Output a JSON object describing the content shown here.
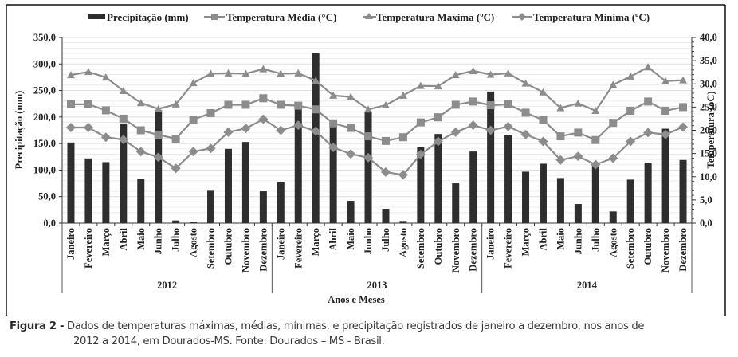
{
  "chart_data": {
    "type": "bar+line",
    "title": "",
    "xlabel": "Anos e Meses",
    "ylabel_left": "Precipitação (mm)",
    "ylabel_right": "Temperatura (oC)",
    "ylim_left": [
      0,
      350
    ],
    "ylim_right": [
      0,
      40
    ],
    "yticks_left": [
      "0,0",
      "50,0",
      "100,0",
      "150,0",
      "200,0",
      "250,0",
      "300,0",
      "350,0"
    ],
    "yticks_right": [
      "0,0",
      "5,0",
      "10,0",
      "15,0",
      "20,0",
      "25,0",
      "30,0",
      "35,0",
      "40,0"
    ],
    "grid": "horizontal",
    "legend_position": "top",
    "years": [
      "2012",
      "2013",
      "2014"
    ],
    "months": [
      "Janeiro",
      "Fevereiro",
      "Março",
      "Abril",
      "Maio",
      "Junho",
      "Julho",
      "Agosto",
      "Setembro",
      "Outubro",
      "Novembro",
      "Dezembro"
    ],
    "series": [
      {
        "name": "Precipitação (mm)",
        "kind": "bar",
        "axis": "left",
        "color": "#2e2e2e",
        "values": [
          152,
          122,
          115,
          188,
          84,
          213,
          5,
          2,
          61,
          140,
          153,
          60,
          77,
          218,
          320,
          183,
          42,
          210,
          27,
          4,
          144,
          168,
          75,
          135,
          248,
          166,
          97,
          112,
          85,
          36,
          108,
          22,
          82,
          114,
          178,
          119
        ]
      },
      {
        "name": "Temperatura Média (°C)",
        "kind": "line",
        "marker": "square",
        "axis": "right",
        "color": "#8c8c8c",
        "values": [
          25.6,
          25.6,
          24.3,
          22.5,
          20.0,
          19.0,
          18.2,
          22.3,
          23.7,
          25.5,
          25.5,
          26.9,
          25.5,
          25.3,
          24.5,
          21.5,
          20.5,
          18.7,
          17.7,
          18.5,
          21.7,
          22.8,
          25.5,
          26.2,
          25.4,
          25.6,
          23.8,
          22.2,
          18.7,
          19.5,
          17.9,
          21.6,
          24.2,
          26.2,
          24.2,
          25.0
        ]
      },
      {
        "name": "Temperatura Máxima (ºC)",
        "kind": "line",
        "marker": "triangle",
        "axis": "right",
        "color": "#8c8c8c",
        "values": [
          31.9,
          32.6,
          31.4,
          28.5,
          25.9,
          24.6,
          25.6,
          30.2,
          32.2,
          32.3,
          32.2,
          33.2,
          32.2,
          32.3,
          30.7,
          27.5,
          27.2,
          24.5,
          25.4,
          27.5,
          29.6,
          29.5,
          31.9,
          32.8,
          32.0,
          32.3,
          30.1,
          28.2,
          24.8,
          25.8,
          24.2,
          29.8,
          31.6,
          33.6,
          30.6,
          30.8
        ]
      },
      {
        "name": "Temperatura Mínima (ºC)",
        "kind": "line",
        "marker": "diamond",
        "axis": "right",
        "color": "#8c8c8c",
        "values": [
          20.6,
          20.6,
          18.5,
          18.0,
          15.4,
          14.2,
          11.8,
          15.4,
          16.1,
          19.6,
          20.4,
          22.4,
          20.0,
          21.1,
          19.8,
          16.3,
          14.9,
          14.1,
          11.0,
          10.4,
          14.8,
          17.6,
          19.6,
          21.1,
          20.0,
          20.8,
          19.1,
          17.6,
          13.6,
          14.4,
          12.6,
          14.0,
          17.6,
          19.5,
          19.1,
          20.7
        ]
      }
    ]
  },
  "caption": {
    "label": "Figura 2 -",
    "line1": " Dados de temperaturas máximas, médias, mínimas, e precipitação registrados de janeiro a dezembro, nos anos de",
    "line2": "2012 a 2014, em Dourados-MS. Fonte: Dourados – MS - Brasil."
  }
}
